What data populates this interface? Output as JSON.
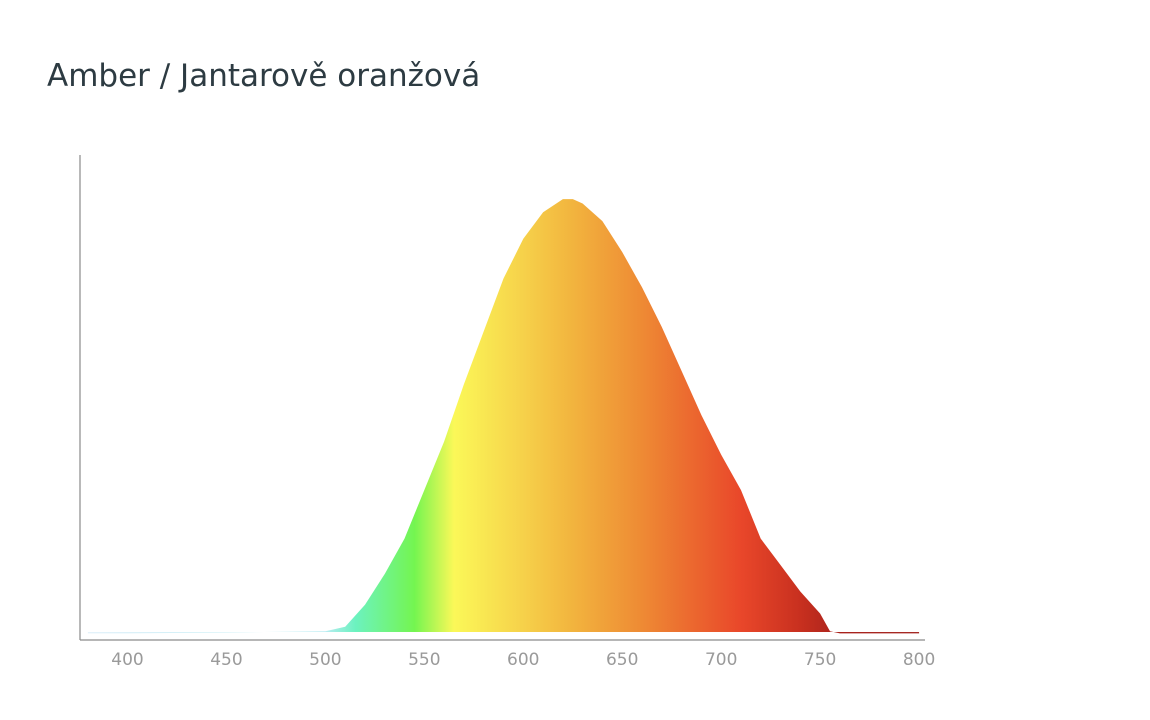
{
  "chart_data": {
    "type": "area",
    "title": "Amber / Jantarově oranžová",
    "x": [
      380,
      400,
      450,
      500,
      510,
      520,
      530,
      540,
      550,
      560,
      570,
      580,
      590,
      600,
      610,
      620,
      625,
      630,
      640,
      650,
      660,
      670,
      680,
      690,
      700,
      710,
      720,
      730,
      740,
      750,
      755,
      760,
      800
    ],
    "values": [
      0.015,
      0.015,
      0.017,
      0.02,
      0.03,
      0.08,
      0.15,
      0.23,
      0.34,
      0.45,
      0.58,
      0.7,
      0.82,
      0.91,
      0.97,
      1.0,
      1.0,
      0.99,
      0.95,
      0.88,
      0.8,
      0.71,
      0.61,
      0.51,
      0.42,
      0.34,
      0.23,
      0.17,
      0.11,
      0.06,
      0.02,
      0.015,
      0.015
    ],
    "xlim": [
      376,
      803
    ],
    "ylim": [
      0,
      1.1
    ],
    "xticks": [
      400,
      450,
      500,
      550,
      600,
      650,
      700,
      750,
      800
    ],
    "grid": false,
    "color_stops": [
      {
        "x": 380,
        "color": "#e4f2fa"
      },
      {
        "x": 500,
        "color": "#b9ecf2"
      },
      {
        "x": 515,
        "color": "#6cf2c0"
      },
      {
        "x": 545,
        "color": "#74f550"
      },
      {
        "x": 565,
        "color": "#fbf858"
      },
      {
        "x": 600,
        "color": "#f6d14a"
      },
      {
        "x": 625,
        "color": "#f2b43e"
      },
      {
        "x": 660,
        "color": "#ee8a34"
      },
      {
        "x": 710,
        "color": "#e9472a"
      },
      {
        "x": 740,
        "color": "#c8301f"
      },
      {
        "x": 760,
        "color": "#a9221c"
      },
      {
        "x": 800,
        "color": "#a52a26"
      }
    ]
  }
}
